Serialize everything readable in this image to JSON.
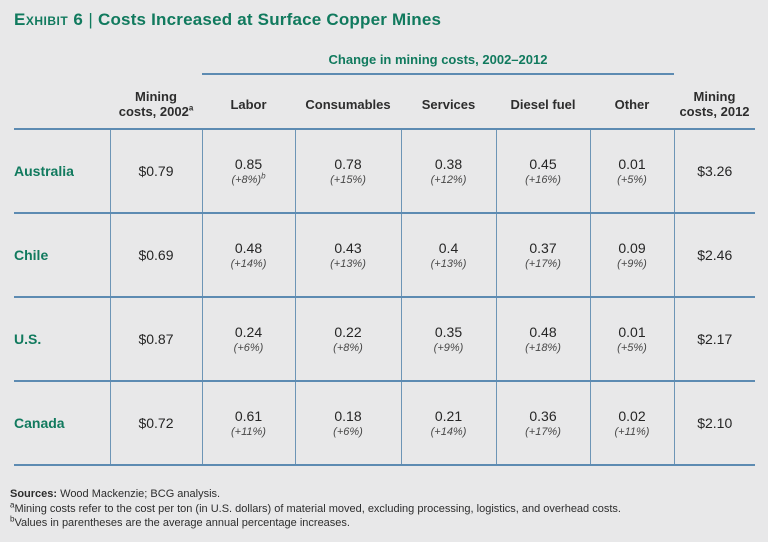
{
  "title": {
    "exhibit_label": "Exhibit 6",
    "divider": "|",
    "text": "Costs Increased at Surface Copper Mines"
  },
  "colors": {
    "background": "#e8e8e9",
    "accent_green": "#117a5e",
    "rule_blue": "#5d8bb2",
    "text_dark": "#2d2d2d"
  },
  "table": {
    "group_header": "Change in mining costs, 2002–2012",
    "headers": [
      {
        "label": ""
      },
      {
        "line1": "Mining",
        "line2": "costs, 2002",
        "sup": "a"
      },
      {
        "label": "Labor"
      },
      {
        "label": "Consumables"
      },
      {
        "label": "Services"
      },
      {
        "label": "Diesel fuel"
      },
      {
        "label": "Other"
      },
      {
        "line1": "Mining",
        "line2": "costs, 2012"
      }
    ],
    "rows": [
      {
        "country": "Australia",
        "m2002": "$0.79",
        "labor": {
          "v": "0.85",
          "p": "(+8%)",
          "sup": "b"
        },
        "consumables": {
          "v": "0.78",
          "p": "(+15%)"
        },
        "services": {
          "v": "0.38",
          "p": "(+12%)"
        },
        "diesel": {
          "v": "0.45",
          "p": "(+16%)"
        },
        "other": {
          "v": "0.01",
          "p": "(+5%)"
        },
        "m2012": "$3.26"
      },
      {
        "country": "Chile",
        "m2002": "$0.69",
        "labor": {
          "v": "0.48",
          "p": "(+14%)"
        },
        "consumables": {
          "v": "0.43",
          "p": "(+13%)"
        },
        "services": {
          "v": "0.4",
          "p": "(+13%)"
        },
        "diesel": {
          "v": "0.37",
          "p": "(+17%)"
        },
        "other": {
          "v": "0.09",
          "p": "(+9%)"
        },
        "m2012": "$2.46"
      },
      {
        "country": "U.S.",
        "m2002": "$0.87",
        "labor": {
          "v": "0.24",
          "p": "(+6%)"
        },
        "consumables": {
          "v": "0.22",
          "p": "(+8%)"
        },
        "services": {
          "v": "0.35",
          "p": "(+9%)"
        },
        "diesel": {
          "v": "0.48",
          "p": "(+18%)"
        },
        "other": {
          "v": "0.01",
          "p": "(+5%)"
        },
        "m2012": "$2.17"
      },
      {
        "country": "Canada",
        "m2002": "$0.72",
        "labor": {
          "v": "0.61",
          "p": "(+11%)"
        },
        "consumables": {
          "v": "0.18",
          "p": "(+6%)"
        },
        "services": {
          "v": "0.21",
          "p": "(+14%)"
        },
        "diesel": {
          "v": "0.36",
          "p": "(+17%)"
        },
        "other": {
          "v": "0.02",
          "p": "(+11%)"
        },
        "m2012": "$2.10"
      }
    ]
  },
  "footnotes": {
    "sources_label": "Sources:",
    "sources_text": " Wood Mackenzie; BCG analysis.",
    "note_a_sup": "a",
    "note_a_text": "Mining costs refer to the cost per ton (in U.S. dollars) of material moved, excluding processing, logistics, and overhead costs.",
    "note_b_sup": "b",
    "note_b_text": "Values in parentheses are the average annual percentage increases."
  },
  "chart_data": {
    "type": "table",
    "title": "Exhibit 6 | Costs Increased at Surface Copper Mines",
    "group_header": "Change in mining costs, 2002–2012",
    "row_labels": [
      "Australia",
      "Chile",
      "U.S.",
      "Canada"
    ],
    "mining_costs_2002_usd_per_ton": [
      0.79,
      0.69,
      0.87,
      0.72
    ],
    "mining_costs_2012_usd_per_ton": [
      3.26,
      2.46,
      2.17,
      2.1
    ],
    "series": [
      {
        "name": "Labor",
        "values": [
          0.85,
          0.48,
          0.24,
          0.61
        ],
        "avg_annual_pct_increase": [
          "+8%",
          "+14%",
          "+6%",
          "+11%"
        ]
      },
      {
        "name": "Consumables",
        "values": [
          0.78,
          0.43,
          0.22,
          0.18
        ],
        "avg_annual_pct_increase": [
          "+15%",
          "+13%",
          "+8%",
          "+6%"
        ]
      },
      {
        "name": "Services",
        "values": [
          0.38,
          0.4,
          0.35,
          0.21
        ],
        "avg_annual_pct_increase": [
          "+12%",
          "+13%",
          "+9%",
          "+14%"
        ]
      },
      {
        "name": "Diesel fuel",
        "values": [
          0.45,
          0.37,
          0.48,
          0.36
        ],
        "avg_annual_pct_increase": [
          "+16%",
          "+17%",
          "+18%",
          "+17%"
        ]
      },
      {
        "name": "Other",
        "values": [
          0.01,
          0.09,
          0.01,
          0.02
        ],
        "avg_annual_pct_increase": [
          "+5%",
          "+9%",
          "+5%",
          "+11%"
        ]
      }
    ]
  }
}
